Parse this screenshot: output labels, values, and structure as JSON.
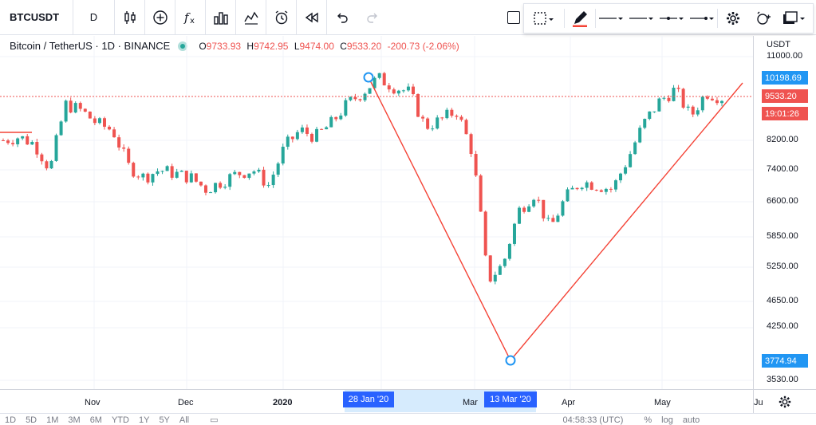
{
  "toolbar": {
    "symbol": "BTCUSDT",
    "interval": "D",
    "icons": [
      "candles-icon",
      "add-indicator-icon",
      "fx-icon",
      "bar-chart-icon",
      "line-chart-icon",
      "alarm-clock-icon",
      "replay-icon",
      "undo-icon",
      "redo-icon"
    ]
  },
  "drawing_toolbar": {
    "icons": [
      "select-area-icon",
      "pencil-icon",
      "line-style-solid-icon",
      "line-style-dash-icon",
      "line-style-dot-icon",
      "line-style-arrow-icon",
      "settings-icon",
      "alert-icon",
      "templates-icon"
    ],
    "pencil_color": "#f44336"
  },
  "legend": {
    "name": "Bitcoin / TetherUS · 1D · BINANCE",
    "open_label": "O",
    "open": "9733.93",
    "high_label": "H",
    "high": "9742.95",
    "low_label": "L",
    "low": "9474.00",
    "close_label": "C",
    "close": "9533.20",
    "change": "-200.73 (-2.06%)"
  },
  "price_axis": {
    "unit": "USDT",
    "ticks": [
      "11000.00",
      "8200.00",
      "7400.00",
      "6600.00",
      "5850.00",
      "5250.00",
      "4650.00",
      "4250.00",
      "3530.00"
    ],
    "labels": [
      {
        "text": "10198.69",
        "color": "#2196f3"
      },
      {
        "text": "9533.20",
        "color": "#ef5350"
      },
      {
        "text": "19:01:26",
        "color": "#ef5350"
      },
      {
        "text": "3774.94",
        "color": "#2196f3"
      }
    ]
  },
  "time_axis": {
    "ticks": [
      "Nov",
      "Dec",
      "2020",
      "Mar",
      "Apr",
      "May",
      "Ju"
    ],
    "highlight_range": [
      "28 Jan '20",
      "13 Mar '20"
    ]
  },
  "bottom_bar": {
    "ranges": [
      "1D",
      "5D",
      "1M",
      "3M",
      "6M",
      "YTD",
      "1Y",
      "5Y",
      "All"
    ],
    "clock": "04:58:33 (UTC)",
    "percent": "%",
    "log": "log",
    "auto": "auto"
  },
  "chart_data": {
    "type": "candlestick",
    "symbol": "BTCUSDT",
    "interval": "1D",
    "ylim": [
      3530,
      11000
    ],
    "drawings": [
      {
        "name": "triangle-drawing",
        "points": [
          {
            "date": "28 Jan '20",
            "price": 10198.69
          },
          {
            "date": "13 Mar '20",
            "price": 3774.94
          }
        ]
      }
    ],
    "approx_close_path": [
      8200,
      8300,
      8100,
      7400,
      9300,
      9100,
      8700,
      8500,
      7500,
      7200,
      7400,
      7300,
      7200,
      6900,
      7100,
      7300,
      7400,
      7000,
      8000,
      8500,
      8300,
      8700,
      9300,
      9700,
      10200,
      9900,
      9700,
      8600,
      8800,
      9100,
      7900,
      5000,
      5300,
      6400,
      6800,
      6000,
      6700,
      7100,
      7000,
      6900,
      7700,
      8700,
      9400,
      9800,
      8900,
      9700,
      9533
    ]
  }
}
